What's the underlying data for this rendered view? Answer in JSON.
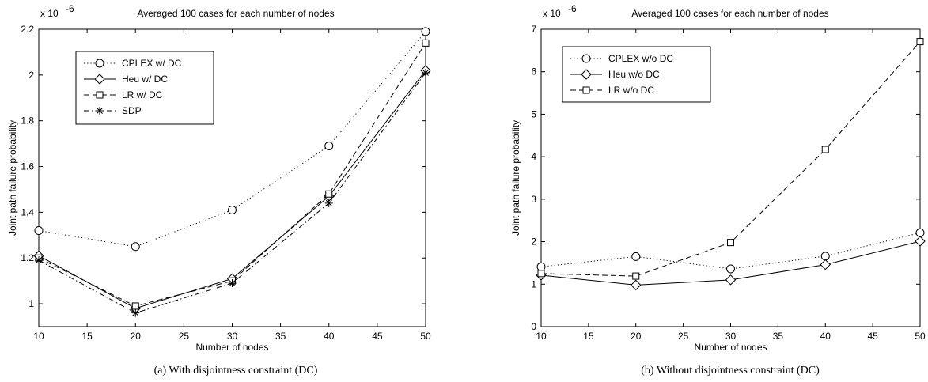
{
  "chart_data": [
    {
      "type": "line",
      "title": "Averaged 100 cases for each number of nodes",
      "xlabel": "Number of nodes",
      "ylabel": "Joint path failure probability",
      "y_multiplier": "x 10",
      "y_exponent": "-6",
      "caption": "(a)  With disjointness constraint (DC)",
      "xlim": [
        10,
        50
      ],
      "ylim": [
        0.9,
        2.2
      ],
      "xticks": [
        10,
        15,
        20,
        25,
        30,
        35,
        40,
        45,
        50
      ],
      "yticks": [
        1,
        1.2,
        1.4,
        1.6,
        1.8,
        2,
        2.2
      ],
      "grid": false,
      "legend_position": "top-left",
      "x": [
        10,
        20,
        30,
        40,
        50
      ],
      "series": [
        {
          "name": "CPLEX w/ DC",
          "values": [
            1.32,
            1.25,
            1.41,
            1.69,
            2.19
          ],
          "linestyle": "dotted",
          "marker": "circle",
          "color": "#000000"
        },
        {
          "name": "Heu w/ DC",
          "values": [
            1.21,
            0.98,
            1.11,
            1.47,
            2.02
          ],
          "linestyle": "solid",
          "marker": "diamond",
          "color": "#000000"
        },
        {
          "name": "LR w/ DC",
          "values": [
            1.2,
            0.99,
            1.1,
            1.48,
            2.14
          ],
          "linestyle": "dashed",
          "marker": "square",
          "color": "#000000"
        },
        {
          "name": "SDP",
          "values": [
            1.19,
            0.96,
            1.09,
            1.44,
            2.01
          ],
          "linestyle": "dashdot",
          "marker": "star",
          "color": "#000000"
        }
      ]
    },
    {
      "type": "line",
      "title": "Averaged 100 cases for each number of nodes",
      "xlabel": "Number of nodes",
      "ylabel": "Joint path failure probability",
      "y_multiplier": "x 10",
      "y_exponent": "-6",
      "caption": "(b)  Without disjointness constraint (DC)",
      "xlim": [
        10,
        50
      ],
      "ylim": [
        0,
        7
      ],
      "xticks": [
        10,
        15,
        20,
        25,
        30,
        35,
        40,
        45,
        50
      ],
      "yticks": [
        0,
        1,
        2,
        3,
        4,
        5,
        6,
        7
      ],
      "grid": false,
      "legend_position": "top-left",
      "x": [
        10,
        20,
        30,
        40,
        50
      ],
      "series": [
        {
          "name": "CPLEX w/o DC",
          "values": [
            1.41,
            1.65,
            1.36,
            1.66,
            2.21
          ],
          "linestyle": "dotted",
          "marker": "circle",
          "color": "#000000"
        },
        {
          "name": "Heu w/o DC",
          "values": [
            1.21,
            0.98,
            1.1,
            1.46,
            2.01
          ],
          "linestyle": "solid",
          "marker": "diamond",
          "color": "#000000"
        },
        {
          "name": "LR w/o DC",
          "values": [
            1.25,
            1.19,
            1.98,
            4.17,
            6.71
          ],
          "linestyle": "dashed",
          "marker": "square",
          "color": "#000000"
        }
      ]
    }
  ]
}
